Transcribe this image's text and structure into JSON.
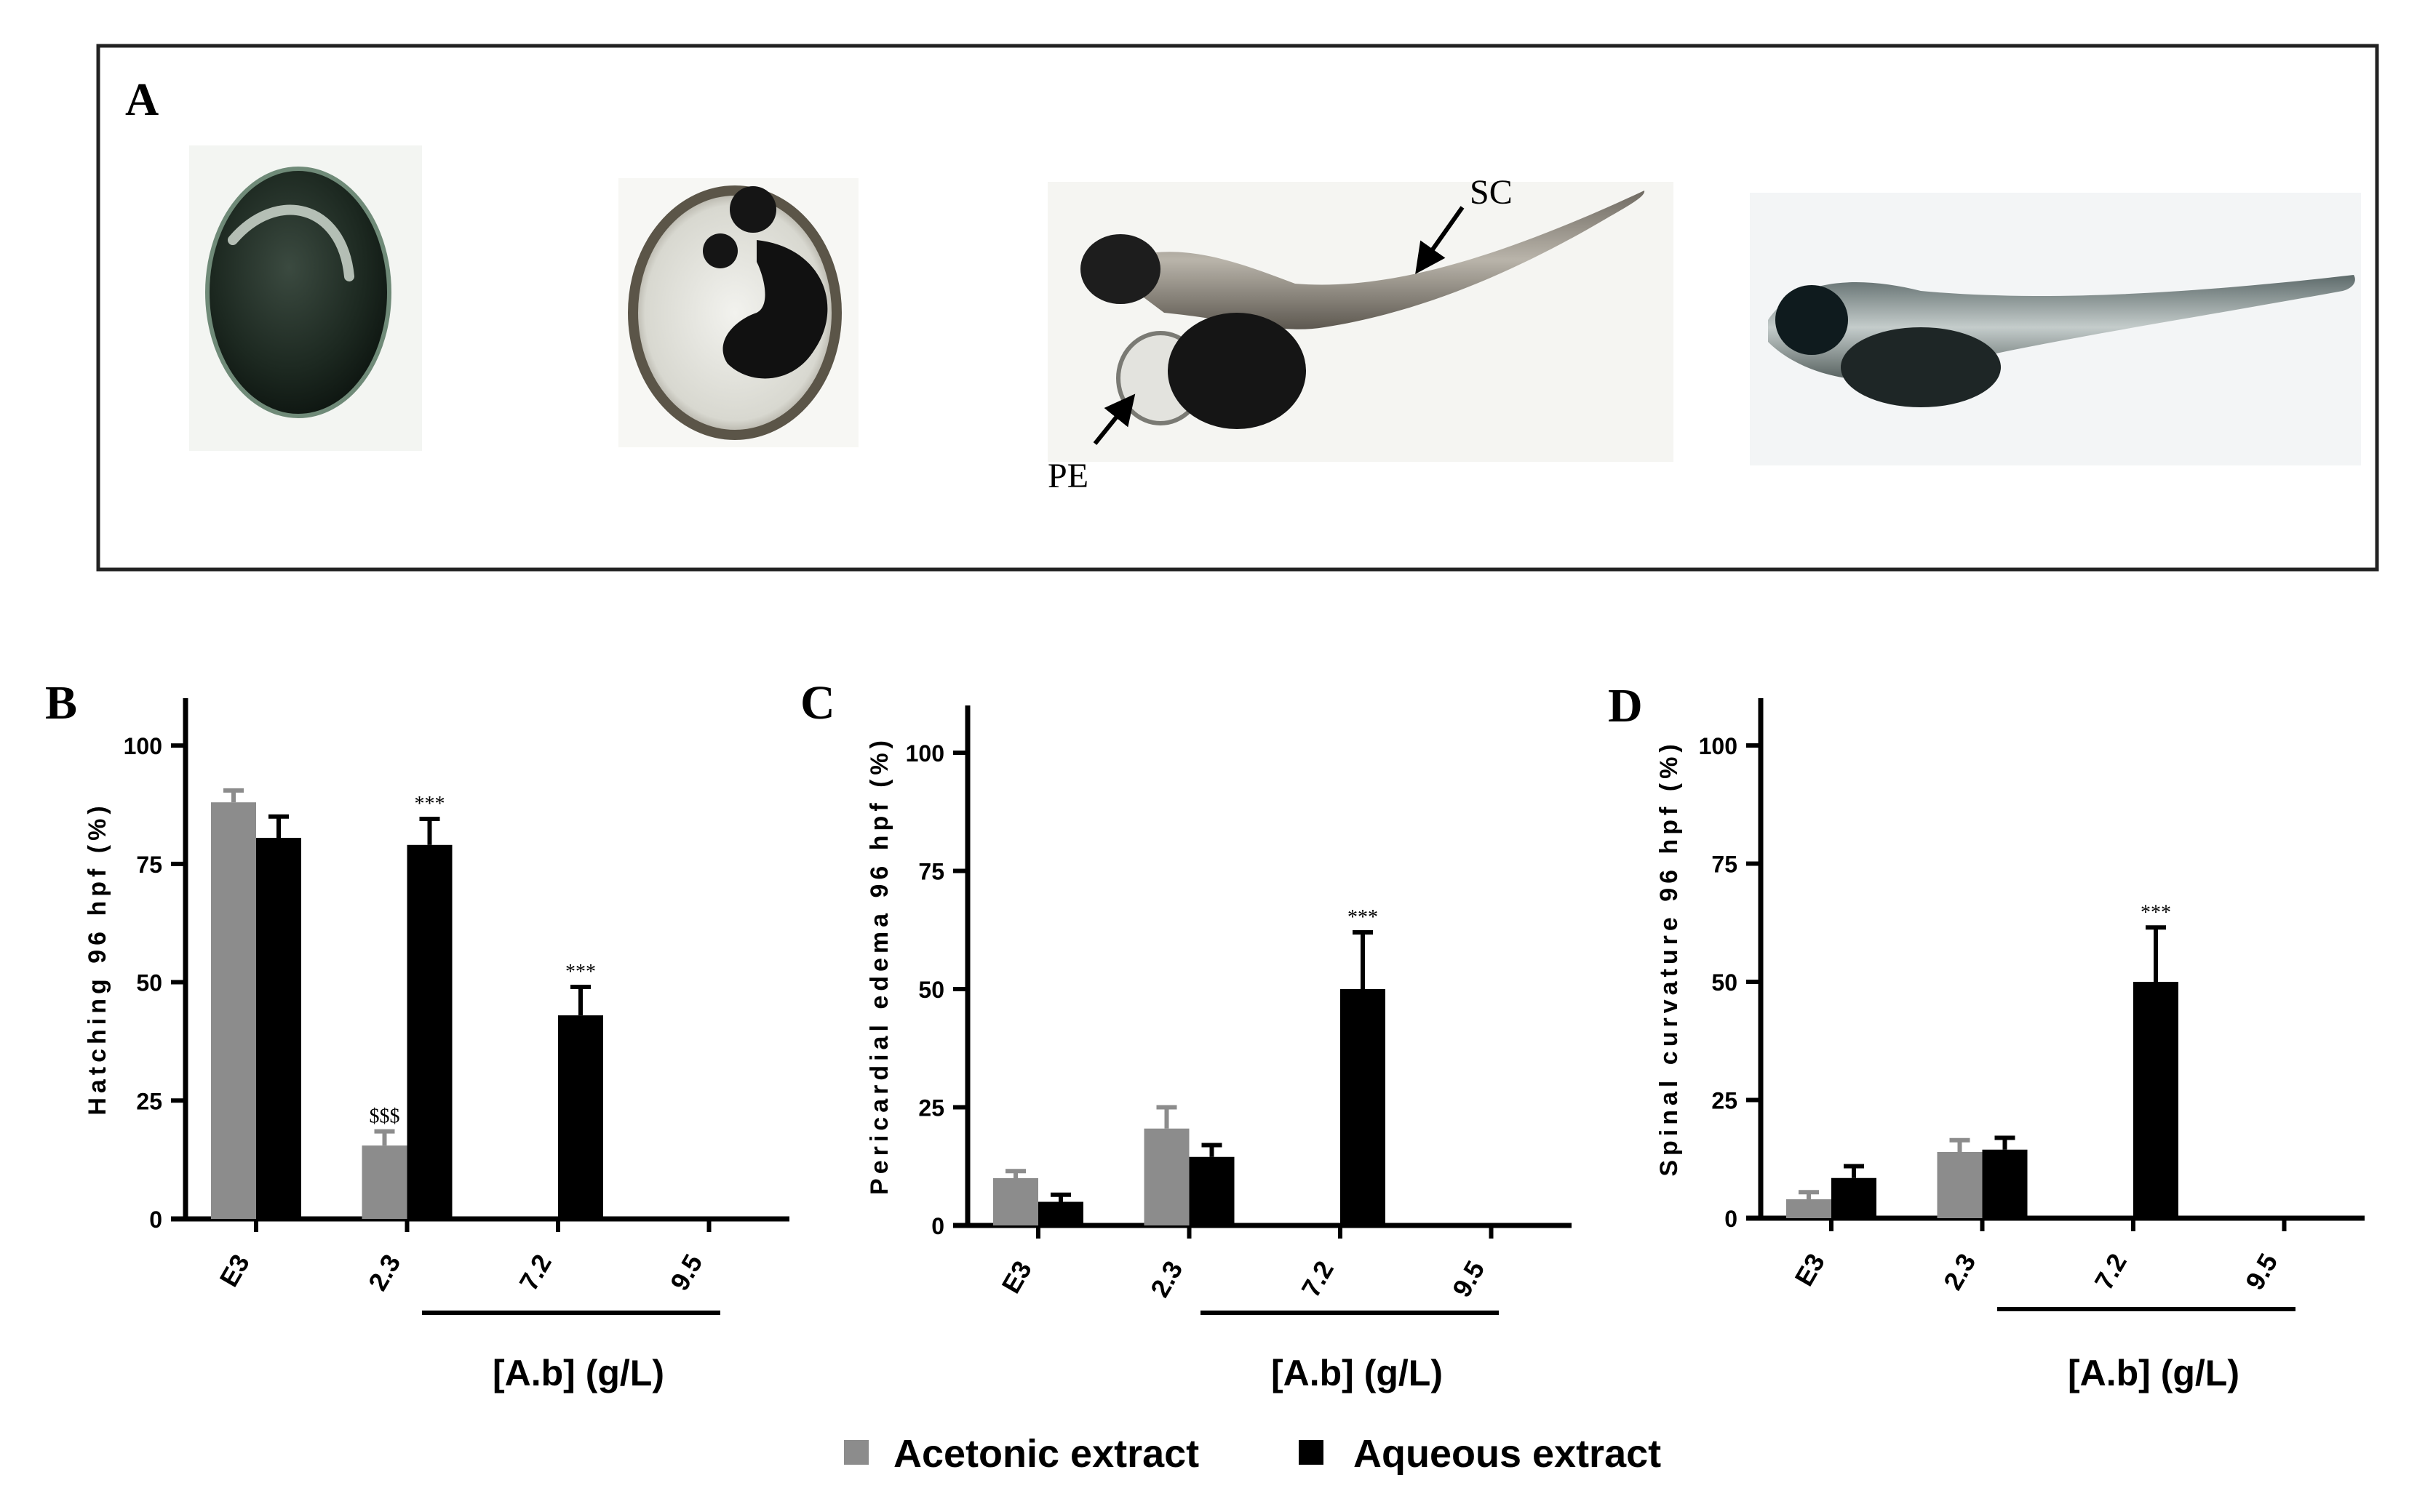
{
  "panel_a": {
    "letter": "A",
    "labels": {
      "sc": "SC",
      "pe": "PE"
    }
  },
  "legend": {
    "items": [
      {
        "label": "Acetonic extract",
        "color": "#8c8c8c"
      },
      {
        "label": "Aqueous extract",
        "color": "#000000"
      }
    ]
  },
  "colors": {
    "acetonic": "#8c8c8c",
    "aqueous": "#000000"
  },
  "chart_data": [
    {
      "panel": "B",
      "type": "bar",
      "ylabel": "Hatching 96 hpf (%)",
      "xlabel": "[A.b] (g/L)",
      "ylim": [
        0,
        110
      ],
      "yticks": [
        0,
        25,
        50,
        75,
        100
      ],
      "categories": [
        "E3",
        "2.3",
        "7.2",
        "9.5"
      ],
      "series": [
        {
          "name": "Acetonic extract",
          "values": [
            88,
            15.5,
            0,
            0
          ],
          "errors": [
            2.5,
            3,
            0,
            0
          ]
        },
        {
          "name": "Aqueous extract",
          "values": [
            80.5,
            79,
            43,
            0
          ],
          "errors": [
            4.5,
            5.5,
            6,
            0
          ]
        }
      ],
      "annotations": [
        {
          "category": "2.3",
          "series": "Acetonic extract",
          "text": "$$$"
        },
        {
          "category": "2.3",
          "series": "Aqueous extract",
          "text": "***"
        },
        {
          "category": "7.2",
          "series": "Aqueous extract",
          "text": "***"
        }
      ]
    },
    {
      "panel": "C",
      "type": "bar",
      "ylabel": "Pericardial edema 96 hpf (%)",
      "xlabel": "[A.b] (g/L)",
      "ylim": [
        0,
        110
      ],
      "yticks": [
        0,
        25,
        50,
        75,
        100
      ],
      "categories": [
        "E3",
        "2.3",
        "7.2",
        "9.5"
      ],
      "series": [
        {
          "name": "Acetonic extract",
          "values": [
            10,
            20.5,
            0,
            0
          ],
          "errors": [
            1.5,
            4.5,
            0,
            0
          ]
        },
        {
          "name": "Aqueous extract",
          "values": [
            5,
            14.5,
            50,
            0
          ],
          "errors": [
            1.5,
            2.5,
            12,
            0
          ]
        }
      ],
      "annotations": [
        {
          "category": "7.2",
          "series": "Aqueous extract",
          "text": "***"
        }
      ]
    },
    {
      "panel": "D",
      "type": "bar",
      "ylabel": "Spinal curvature 96 hpf (%)",
      "xlabel": "[A.b] (g/L)",
      "ylim": [
        0,
        110
      ],
      "yticks": [
        0,
        25,
        50,
        75,
        100
      ],
      "categories": [
        "E3",
        "2.3",
        "7.2",
        "9.5"
      ],
      "series": [
        {
          "name": "Acetonic extract",
          "values": [
            4,
            14,
            0,
            0
          ],
          "errors": [
            1.5,
            2.5,
            0,
            0
          ]
        },
        {
          "name": "Aqueous extract",
          "values": [
            8.5,
            14.5,
            50,
            0
          ],
          "errors": [
            2.5,
            2.5,
            11.5,
            0
          ]
        }
      ],
      "annotations": [
        {
          "category": "7.2",
          "series": "Aqueous extract",
          "text": "***"
        }
      ]
    }
  ]
}
